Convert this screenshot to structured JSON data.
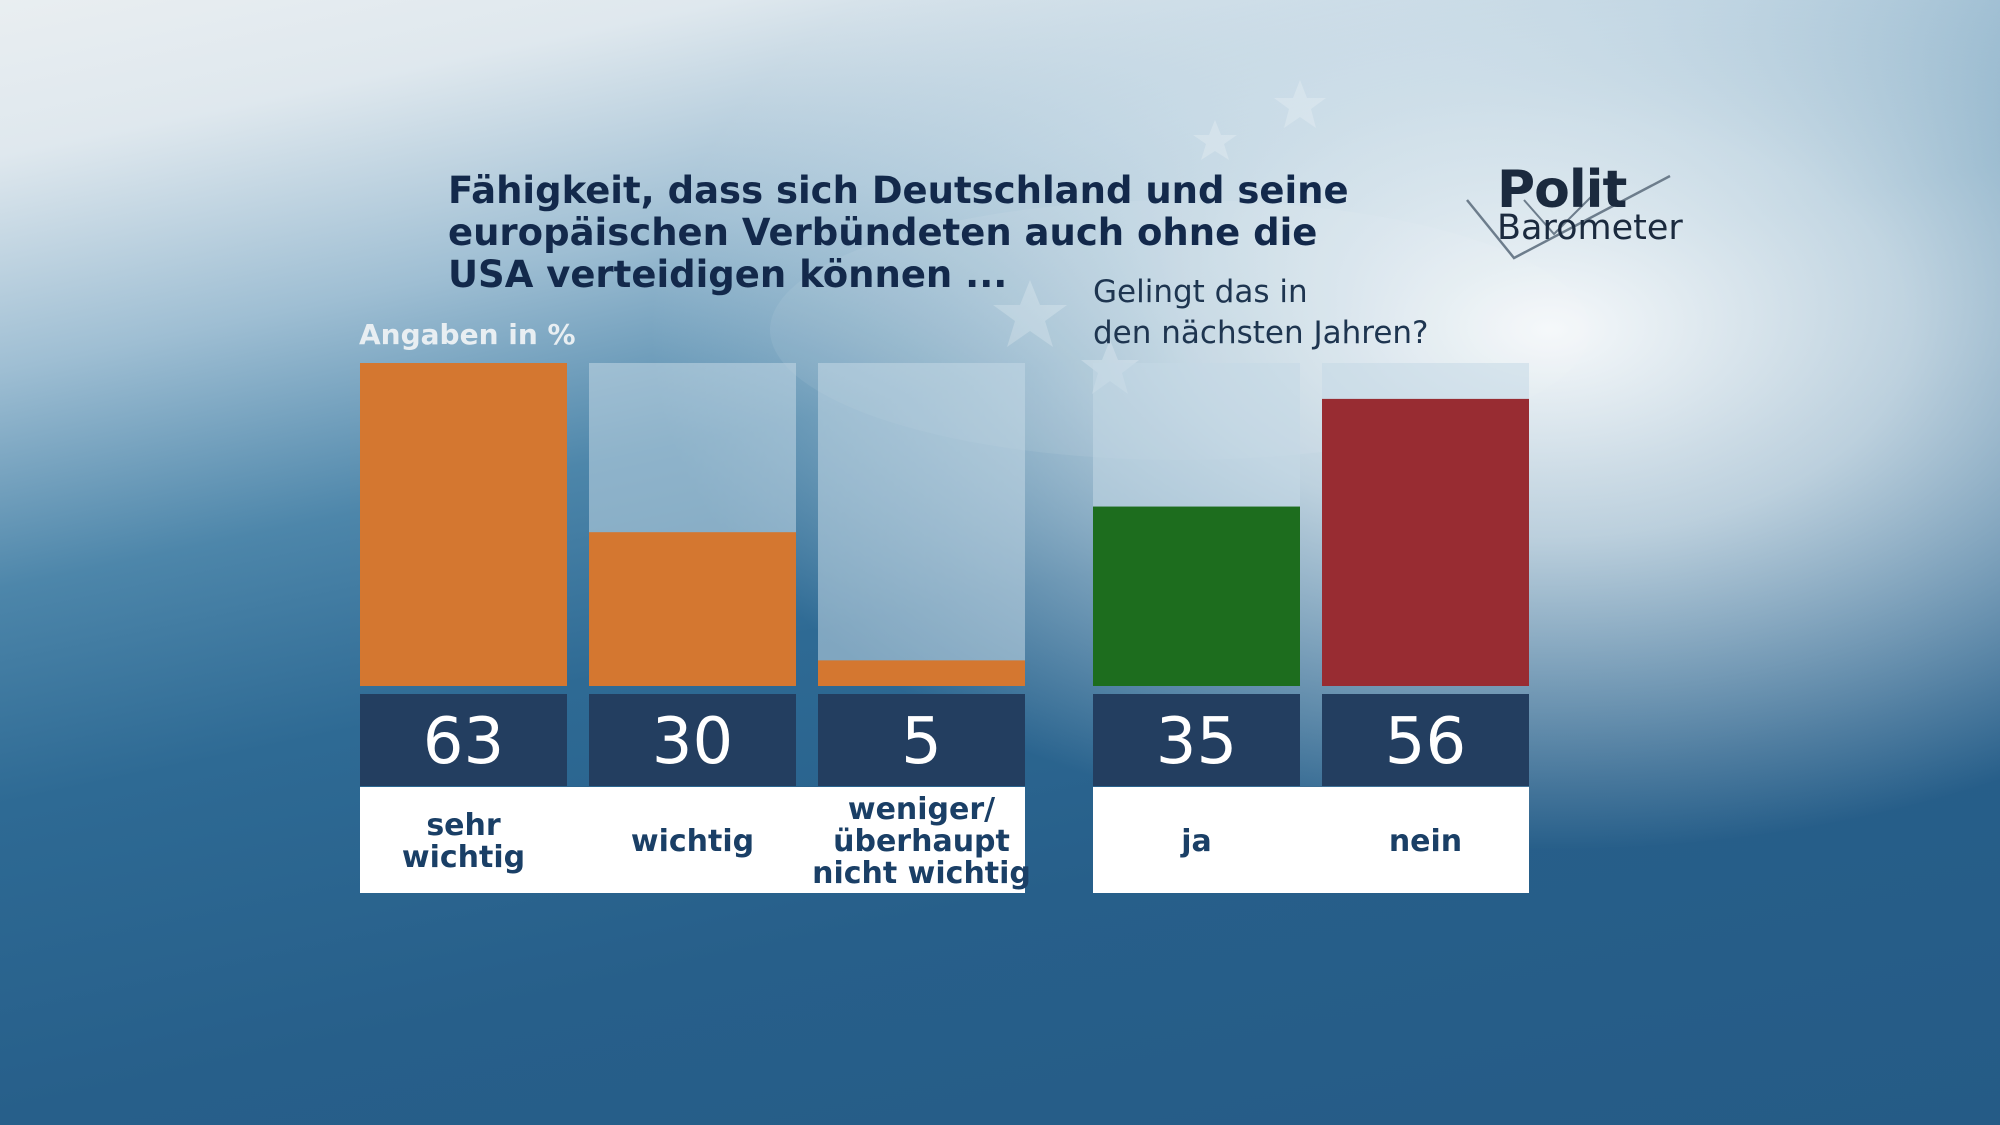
{
  "chart_data": [
    {
      "type": "bar",
      "title": "Fähigkeit, dass sich Deutschland und seine\neuropäischen Verbündeten auch ohne die\nUSA verteidigen können ...",
      "subtitle": "Angaben in %",
      "categories": [
        "sehr\nwichtig",
        "wichtig",
        "weniger/\nüberhaupt\nnicht wichtig"
      ],
      "values": [
        63,
        30,
        5
      ],
      "ylim": [
        0,
        63
      ],
      "colors": [
        "#d47730",
        "#d47730",
        "#d47730"
      ]
    },
    {
      "type": "bar",
      "title": "Gelingt das in\nden nächsten Jahren?",
      "categories": [
        "ja",
        "nein"
      ],
      "values": [
        35,
        56
      ],
      "ylim": [
        0,
        63
      ],
      "colors": [
        "#1d6d1e",
        "#982c32"
      ]
    }
  ],
  "logo": {
    "line1": "Polit",
    "line2": "Barometer"
  },
  "colors": {
    "value_box": "#233e60",
    "track": "#c4d9e5",
    "label_box": "#ffffff",
    "title": "#13294b"
  }
}
